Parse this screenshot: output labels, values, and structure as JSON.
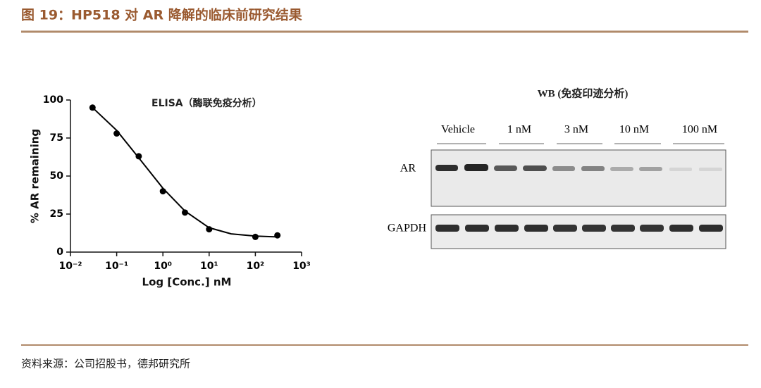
{
  "header": {
    "title": "图 19：HP518 对 AR 降解的临床前研究结果"
  },
  "chart_data": {
    "type": "scatter",
    "title": "ELISA（酶联免疫分析）",
    "x_label": "Log [Conc.] nM",
    "y_label": "% AR remaining",
    "x": [
      0.03,
      0.1,
      0.3,
      1,
      3,
      10,
      100,
      300
    ],
    "values": [
      95,
      78,
      63,
      40,
      26,
      15,
      10,
      11
    ],
    "color": "#000000",
    "fit": {
      "x": [
        0.03,
        0.1,
        0.3,
        1,
        3,
        10,
        30,
        100,
        300
      ],
      "values": [
        95,
        80,
        62,
        42,
        27,
        16,
        12,
        10.5,
        10
      ]
    },
    "x_log": true,
    "xlim": [
      0.01,
      1000
    ],
    "ylim": [
      0,
      100
    ],
    "xticks": [
      {
        "value": 0.01,
        "label": "10⁻²"
      },
      {
        "value": 0.1,
        "label": "10⁻¹"
      },
      {
        "value": 1,
        "label": "10⁰"
      },
      {
        "value": 10,
        "label": "10¹"
      },
      {
        "value": 100,
        "label": "10²"
      },
      {
        "value": 1000,
        "label": "10³"
      }
    ],
    "yticks": [
      0,
      25,
      50,
      75,
      100
    ]
  },
  "western_blot": {
    "title": "WB (免疫印迹分析)",
    "lanes": [
      "Vehicle",
      "1 nM",
      "3 nM",
      "10 nM",
      "100 nM"
    ],
    "rows": [
      "AR",
      "GAPDH"
    ]
  },
  "source": "资料来源：公司招股书，德邦研究所"
}
